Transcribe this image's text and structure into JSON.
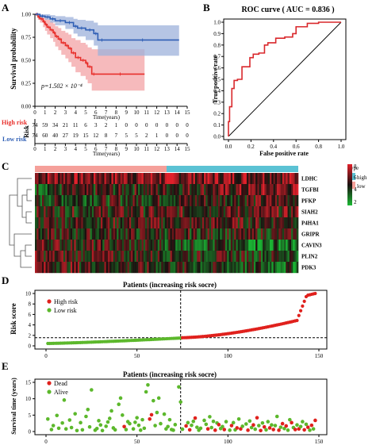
{
  "panel_labels": [
    "A",
    "B",
    "C",
    "D",
    "E"
  ],
  "colors": {
    "high": "#e8302c",
    "low": "#2f5fb5",
    "high_band": "#f3a3a5",
    "low_band": "#9eb2db",
    "roc": "#d9282c",
    "risk_dot_high": "#e0211d",
    "risk_dot_low": "#5cb82c",
    "heat_high": "#e0212b",
    "heat_low": "#1bb934",
    "heat_mid": "#1a1010",
    "type_high": "#5bc2d4",
    "type_low": "#f5a09a"
  },
  "chart_data": [
    {
      "id": "A",
      "type": "line",
      "subtype": "kaplan-meier",
      "ylabel": "Survival probability",
      "xlabel": "Time(years)",
      "xlim": [
        0,
        15
      ],
      "ylim": [
        0,
        1.0
      ],
      "xticks": [
        0,
        1,
        2,
        3,
        4,
        5,
        6,
        7,
        8,
        9,
        10,
        11,
        12,
        13,
        14,
        15
      ],
      "yticks": [
        "0.00",
        "0.25",
        "0.50",
        "0.75",
        "1.00"
      ],
      "pvalue": "p=1.502 × 10⁻⁴",
      "series": [
        {
          "name": "High risk",
          "x": [
            0,
            0.3,
            0.5,
            0.8,
            1.0,
            1.2,
            1.5,
            1.8,
            2.0,
            2.3,
            2.6,
            3.0,
            3.3,
            3.6,
            4.0,
            4.5,
            5.0,
            5.2,
            5.6,
            6.0,
            10.8
          ],
          "y": [
            1.0,
            0.97,
            0.95,
            0.92,
            0.89,
            0.86,
            0.83,
            0.8,
            0.76,
            0.73,
            0.69,
            0.66,
            0.63,
            0.58,
            0.53,
            0.5,
            0.47,
            0.43,
            0.35,
            0.35,
            0.35
          ],
          "lower": [
            1.0,
            0.94,
            0.91,
            0.86,
            0.82,
            0.78,
            0.74,
            0.7,
            0.65,
            0.61,
            0.56,
            0.52,
            0.48,
            0.43,
            0.37,
            0.33,
            0.29,
            0.25,
            0.17,
            0.17,
            0.17
          ],
          "upper": [
            1.0,
            1.0,
            0.99,
            0.97,
            0.96,
            0.94,
            0.92,
            0.9,
            0.87,
            0.85,
            0.82,
            0.8,
            0.78,
            0.74,
            0.72,
            0.69,
            0.67,
            0.64,
            0.62,
            0.62,
            0.62
          ]
        },
        {
          "name": "Low risk",
          "x": [
            0,
            0.5,
            1.0,
            1.5,
            2.0,
            3.0,
            3.8,
            4.2,
            5.0,
            5.8,
            6.2,
            7.0,
            14.2
          ],
          "y": [
            1.0,
            0.98,
            0.97,
            0.95,
            0.93,
            0.91,
            0.87,
            0.85,
            0.83,
            0.79,
            0.72,
            0.72,
            0.72
          ],
          "lower": [
            1.0,
            0.96,
            0.94,
            0.91,
            0.88,
            0.84,
            0.79,
            0.76,
            0.72,
            0.66,
            0.55,
            0.55,
            0.55
          ],
          "upper": [
            1.0,
            1.0,
            1.0,
            0.99,
            0.98,
            0.97,
            0.95,
            0.94,
            0.93,
            0.91,
            0.88,
            0.88,
            0.88
          ]
        }
      ],
      "risk_table": {
        "title": "Risk",
        "xlabel": "Time(years)",
        "rows": [
          {
            "name": "High risk",
            "values": [
              "74",
              "59",
              "34",
              "21",
              "11",
              "6",
              "3",
              "2",
              "1",
              "0",
              "0",
              "0",
              "0",
              "0",
              "0",
              "0"
            ]
          },
          {
            "name": "Low risk",
            "values": [
              "74",
              "60",
              "40",
              "27",
              "19",
              "15",
              "12",
              "8",
              "7",
              "5",
              "5",
              "2",
              "1",
              "0",
              "0",
              "0"
            ]
          }
        ]
      }
    },
    {
      "id": "B",
      "type": "line",
      "subtype": "roc",
      "title": "ROC curve ( AUC = 0.836 )",
      "xlabel": "False positive rate",
      "ylabel": "True positive rate",
      "xlim": [
        0,
        1
      ],
      "ylim": [
        0,
        1
      ],
      "xticks": [
        "0.0",
        "0.2",
        "0.4",
        "0.6",
        "0.8",
        "1.0"
      ],
      "yticks": [
        "0.0",
        "0.1",
        "0.2",
        "0.3",
        "0.4",
        "0.5",
        "0.6",
        "0.7",
        "0.8",
        "0.9",
        "1.0"
      ],
      "x": [
        0.0,
        0.0,
        0.01,
        0.01,
        0.03,
        0.03,
        0.05,
        0.05,
        0.08,
        0.08,
        0.12,
        0.12,
        0.19,
        0.19,
        0.22,
        0.22,
        0.27,
        0.27,
        0.32,
        0.32,
        0.35,
        0.35,
        0.42,
        0.42,
        0.5,
        0.5,
        0.57,
        0.57,
        0.6,
        0.6,
        0.7,
        0.7,
        0.8,
        0.8,
        1.0
      ],
      "y": [
        0.0,
        0.13,
        0.13,
        0.26,
        0.26,
        0.42,
        0.42,
        0.49,
        0.49,
        0.5,
        0.5,
        0.61,
        0.61,
        0.69,
        0.69,
        0.72,
        0.72,
        0.73,
        0.73,
        0.8,
        0.8,
        0.82,
        0.82,
        0.86,
        0.86,
        0.87,
        0.87,
        0.9,
        0.9,
        0.96,
        0.96,
        0.99,
        0.99,
        1.0,
        1.0
      ]
    },
    {
      "id": "C",
      "type": "heatmap",
      "rows": [
        "LDHC",
        "TGFBI",
        "PFKP",
        "SIAH2",
        "P4HA1",
        "GRIPR",
        "CAVIN3",
        "PLIN2",
        "PDK3"
      ],
      "legend_title": "type",
      "legend_entries": [
        "high",
        "low"
      ],
      "scale": [
        2,
        4,
        6,
        8
      ],
      "n_low": 74,
      "n_high": 74
    },
    {
      "id": "D",
      "type": "scatter",
      "title": "Patients (increasing risk socre)",
      "ylabel": "Risk score",
      "xlim": [
        0,
        150
      ],
      "ylim": [
        0,
        10
      ],
      "xticks": [
        "0",
        "50",
        "100",
        "150"
      ],
      "yticks": [
        "0",
        "2",
        "4",
        "6",
        "8",
        "10"
      ],
      "cutoff_x": 74,
      "cutoff_y": 1.55,
      "legend": [
        "High risk",
        "Low risk"
      ],
      "n": 148
    },
    {
      "id": "E",
      "type": "scatter",
      "title": "Patients (increasing risk socre)",
      "ylabel": "Survival time (years)",
      "xlim": [
        0,
        150
      ],
      "ylim": [
        0,
        15
      ],
      "xticks": [
        "0",
        "50",
        "100",
        "150"
      ],
      "yticks": [
        "0",
        "5",
        "10",
        "15"
      ],
      "cutoff_x": 74,
      "legend": [
        "Dead",
        "Alive"
      ],
      "points": [
        [
          1,
          3.8,
          0
        ],
        [
          3,
          0.6,
          0
        ],
        [
          4,
          1.8,
          0
        ],
        [
          6,
          4.9,
          0
        ],
        [
          7,
          1.0,
          0
        ],
        [
          9,
          2.6,
          0
        ],
        [
          10,
          9.6,
          0
        ],
        [
          11,
          0.8,
          0
        ],
        [
          13,
          3.5,
          0
        ],
        [
          14,
          1.2,
          0
        ],
        [
          16,
          5.4,
          0
        ],
        [
          17,
          0.3,
          0
        ],
        [
          19,
          2.7,
          0
        ],
        [
          20,
          0.5,
          0
        ],
        [
          22,
          4.6,
          0
        ],
        [
          23,
          6.7,
          0
        ],
        [
          24,
          1.4,
          0
        ],
        [
          25,
          12.7,
          0
        ],
        [
          27,
          0.4,
          0
        ],
        [
          28,
          0.9,
          0
        ],
        [
          29,
          3.3,
          0
        ],
        [
          30,
          2.0,
          0
        ],
        [
          31,
          0.3,
          0
        ],
        [
          33,
          1.6,
          0
        ],
        [
          34,
          2.9,
          0
        ],
        [
          35,
          4.0,
          0
        ],
        [
          36,
          6.3,
          0
        ],
        [
          37,
          1.1,
          0
        ],
        [
          38,
          0.5,
          0
        ],
        [
          40,
          8.3,
          0
        ],
        [
          41,
          10.2,
          0
        ],
        [
          42,
          5.0,
          0
        ],
        [
          43,
          1.5,
          1
        ],
        [
          44,
          0.6,
          0
        ],
        [
          45,
          3.0,
          0
        ],
        [
          46,
          2.4,
          0
        ],
        [
          48,
          0.8,
          0
        ],
        [
          49,
          2.8,
          0
        ],
        [
          50,
          4.2,
          0
        ],
        [
          51,
          1.9,
          0
        ],
        [
          52,
          0.4,
          0
        ],
        [
          53,
          3.6,
          0
        ],
        [
          54,
          1.0,
          0
        ],
        [
          55,
          12.1,
          0
        ],
        [
          56,
          14.2,
          0
        ],
        [
          57,
          3.8,
          1
        ],
        [
          58,
          5.1,
          1
        ],
        [
          59,
          9.4,
          0
        ],
        [
          60,
          1.8,
          0
        ],
        [
          61,
          5.8,
          0
        ],
        [
          62,
          10.2,
          0
        ],
        [
          63,
          2.4,
          0
        ],
        [
          65,
          5.3,
          0
        ],
        [
          66,
          0.8,
          0
        ],
        [
          67,
          1.5,
          0
        ],
        [
          68,
          3.6,
          0
        ],
        [
          69,
          0.6,
          0
        ],
        [
          70,
          0.4,
          0
        ],
        [
          71,
          2.1,
          0
        ],
        [
          73,
          13.6,
          0
        ],
        [
          74,
          9.0,
          0
        ],
        [
          75,
          0.7,
          0
        ],
        [
          77,
          1.7,
          1
        ],
        [
          78,
          2.7,
          0
        ],
        [
          79,
          0.5,
          1
        ],
        [
          80,
          1.9,
          0
        ],
        [
          81,
          3.1,
          0
        ],
        [
          82,
          4.1,
          1
        ],
        [
          83,
          1.3,
          0
        ],
        [
          84,
          0.4,
          0
        ],
        [
          85,
          1.0,
          0
        ],
        [
          87,
          3.4,
          0
        ],
        [
          88,
          2.2,
          0
        ],
        [
          89,
          0.8,
          1
        ],
        [
          90,
          4.5,
          0
        ],
        [
          91,
          1.2,
          0
        ],
        [
          92,
          3.1,
          0
        ],
        [
          93,
          0.4,
          1
        ],
        [
          94,
          2.6,
          0
        ],
        [
          95,
          2.1,
          1
        ],
        [
          96,
          0.9,
          0
        ],
        [
          97,
          1.5,
          0
        ],
        [
          98,
          0.6,
          1
        ],
        [
          99,
          3.0,
          0
        ],
        [
          101,
          0.4,
          0
        ],
        [
          102,
          1.8,
          1
        ],
        [
          103,
          2.7,
          0
        ],
        [
          104,
          0.5,
          0
        ],
        [
          105,
          1.1,
          1
        ],
        [
          106,
          3.8,
          0
        ],
        [
          107,
          0.8,
          1
        ],
        [
          108,
          1.6,
          0
        ],
        [
          110,
          2.3,
          0
        ],
        [
          111,
          0.4,
          1
        ],
        [
          112,
          3.2,
          0
        ],
        [
          113,
          1.2,
          0
        ],
        [
          114,
          2.0,
          1
        ],
        [
          115,
          0.7,
          0
        ],
        [
          116,
          4.2,
          1
        ],
        [
          117,
          1.8,
          0
        ],
        [
          118,
          0.3,
          1
        ],
        [
          119,
          2.6,
          0
        ],
        [
          120,
          1.4,
          1
        ],
        [
          121,
          0.5,
          0
        ],
        [
          122,
          3.0,
          0
        ],
        [
          123,
          1.1,
          1
        ],
        [
          124,
          2.0,
          0
        ],
        [
          125,
          0.6,
          1
        ],
        [
          126,
          1.8,
          0
        ],
        [
          127,
          4.6,
          0
        ],
        [
          128,
          0.4,
          1
        ],
        [
          129,
          1.3,
          0
        ],
        [
          130,
          2.4,
          1
        ],
        [
          131,
          0.9,
          0
        ],
        [
          132,
          1.7,
          1
        ],
        [
          133,
          0.4,
          0
        ],
        [
          134,
          3.6,
          0
        ],
        [
          135,
          2.7,
          1
        ],
        [
          136,
          1.2,
          0
        ],
        [
          137,
          0.6,
          1
        ],
        [
          138,
          2.0,
          0
        ],
        [
          139,
          0.8,
          1
        ],
        [
          140,
          1.5,
          0
        ],
        [
          141,
          3.0,
          0
        ],
        [
          142,
          0.5,
          1
        ],
        [
          143,
          2.2,
          0
        ],
        [
          144,
          1.3,
          1
        ],
        [
          145,
          0.4,
          0
        ],
        [
          146,
          1.9,
          1
        ],
        [
          147,
          0.8,
          0
        ],
        [
          148,
          3.4,
          1
        ]
      ]
    }
  ]
}
